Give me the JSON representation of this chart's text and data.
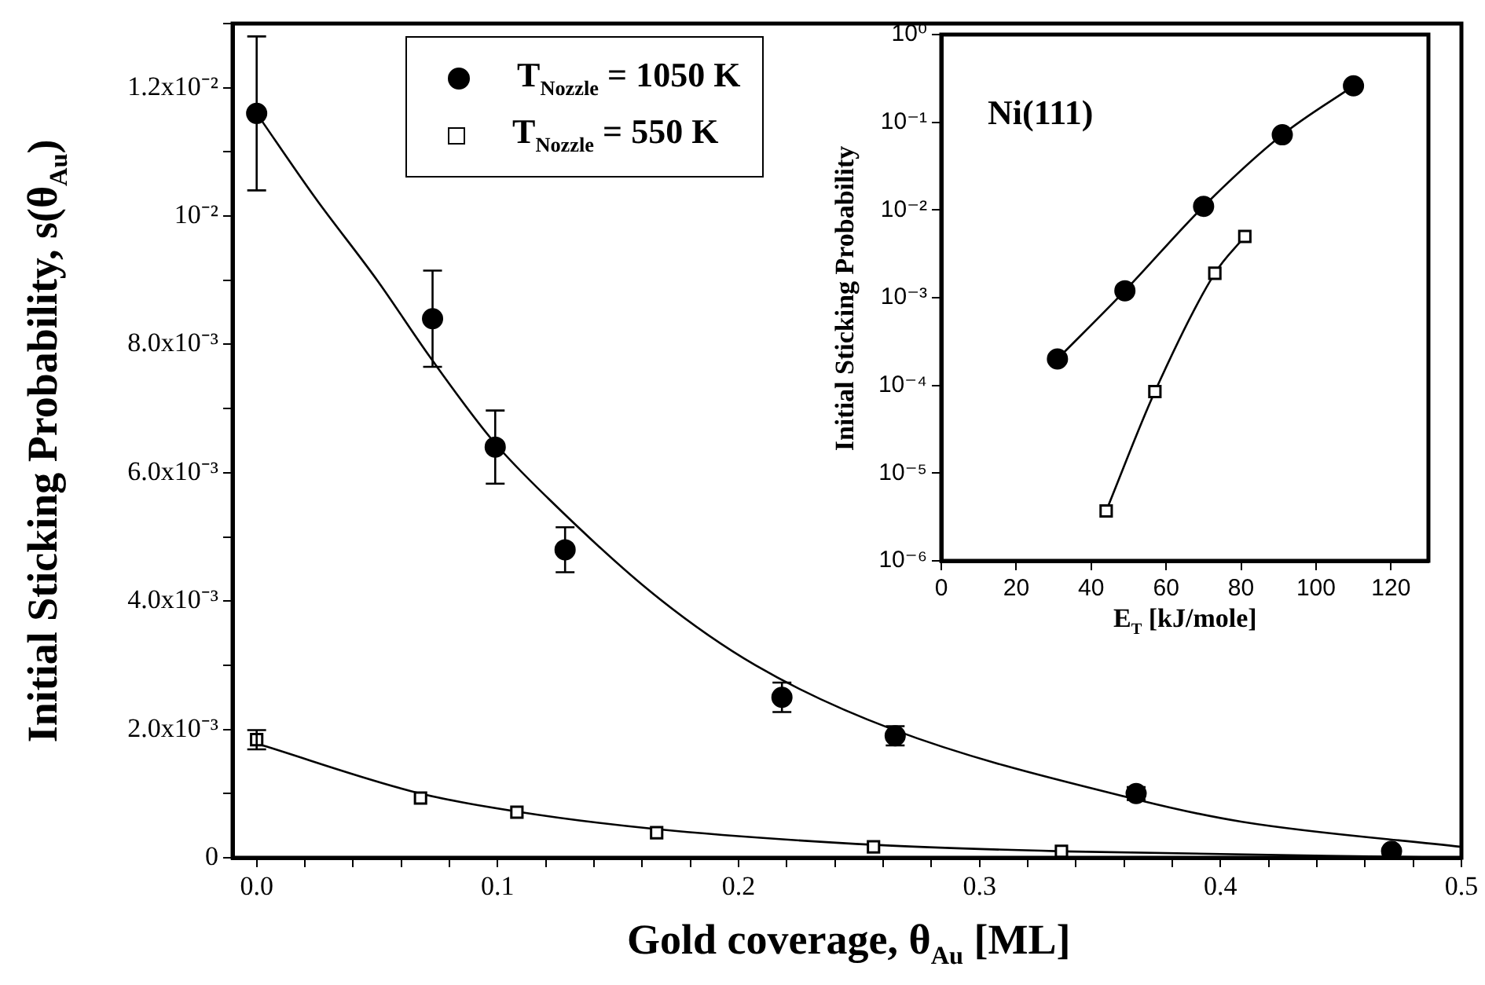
{
  "chart_data": [
    {
      "type": "scatter",
      "xlabel": "Gold coverage, θ$_{Au}$ [ML]",
      "ylabel": "Initial Sticking Probability, s(θ$_{Au}$)",
      "xlim": [
        -0.01,
        0.5
      ],
      "xticks": [
        {
          "value": 0,
          "label": "0.0"
        },
        {
          "value": 0.02,
          "label": null
        },
        {
          "value": 0.04,
          "label": null
        },
        {
          "value": 0.06,
          "label": null
        },
        {
          "value": 0.08,
          "label": null
        },
        0.1,
        {
          "value": 0.12,
          "label": null
        },
        {
          "value": 0.14,
          "label": null
        },
        {
          "value": 0.16,
          "label": null
        },
        {
          "value": 0.18,
          "label": null
        },
        0.2,
        {
          "value": 0.22,
          "label": null
        },
        {
          "value": 0.24,
          "label": null
        },
        {
          "value": 0.26,
          "label": null
        },
        {
          "value": 0.28,
          "label": null
        },
        0.3,
        {
          "value": 0.32,
          "label": null
        },
        {
          "value": 0.34,
          "label": null
        },
        {
          "value": 0.36,
          "label": null
        },
        {
          "value": 0.38,
          "label": null
        },
        0.4,
        {
          "value": 0.42,
          "label": null
        },
        {
          "value": 0.44,
          "label": null
        },
        {
          "value": 0.46,
          "label": null
        },
        {
          "value": 0.48,
          "label": null
        },
        0.5
      ],
      "ylim": [
        0,
        0.013
      ],
      "yticks": [
        0,
        {
          "value": 0.001,
          "label": null
        },
        {
          "value": 0.002,
          "label": "2.0x10⁻³"
        },
        {
          "value": 0.003,
          "label": null
        },
        {
          "value": 0.004,
          "label": "4.0x10⁻³"
        },
        {
          "value": 0.005,
          "label": null
        },
        {
          "value": 0.006,
          "label": "6.0x10⁻³"
        },
        {
          "value": 0.007,
          "label": null
        },
        {
          "value": 0.008,
          "label": "8.0x10⁻³"
        },
        {
          "value": 0.009,
          "label": null
        },
        {
          "value": 0.01,
          "label": "10⁻²"
        },
        {
          "value": 0.011,
          "label": null
        },
        {
          "value": 0.012,
          "label": "1.2x10⁻²"
        },
        {
          "value": 0.013,
          "label": null
        }
      ],
      "grid": false,
      "legend": "top",
      "series": [
        {
          "name": "T$_{Nozzle}$ = 1050 K",
          "marker": "circle",
          "color": "#000000",
          "x": [
            0,
            0.073,
            0.099,
            0.128,
            0.218,
            0.265,
            0.365,
            0.471
          ],
          "values": [
            0.0116,
            0.0084,
            0.0064,
            0.0048,
            0.0025,
            0.0019,
            0.001,
            0.0001
          ],
          "errors": [
            0.0012,
            0.00075,
            0.00057,
            0.00035,
            0.00023,
            0.00015,
            0.0001,
            null
          ]
        },
        {
          "name": "T$_{Nozzle}$ = 550 K",
          "marker": "square",
          "color": "#000000",
          "x": [
            0,
            0.068,
            0.108,
            0.166,
            0.256,
            0.334
          ],
          "values": [
            0.00184,
            0.00093,
            0.00071,
            0.00039,
            0.00017,
            0.0001
          ],
          "errors": [
            0.00015,
            null,
            null,
            null,
            null,
            null
          ]
        },
        {
          "type": "line",
          "marker": "none",
          "color": "#000000",
          "x": [
            0,
            0.024,
            0.05,
            0.072,
            0.098,
            0.121,
            0.165,
            0.207,
            0.264,
            0.366,
            0.409,
            0.5
          ],
          "values": [
            0.0116,
            0.0103,
            0.009,
            0.0078,
            0.0065,
            0.0056,
            0.0041,
            0.003,
            0.002,
            0.0009,
            0.00056,
            0.00017
          ]
        },
        {
          "type": "line",
          "marker": "none",
          "color": "#000000",
          "x": [
            0,
            0.068,
            0.108,
            0.165,
            0.257,
            0.335,
            0.5
          ],
          "values": [
            0.00178,
            0.001,
            0.00072,
            0.00045,
            0.0002,
            0.0001,
            0
          ]
        }
      ]
    },
    {
      "type": "line",
      "xlabel": "E$_{T}$ [kJ/mole]",
      "ylabel": "Initial Sticking Probability",
      "annotations": [
        "Ni(111)"
      ],
      "log": "y",
      "grid": false,
      "xlim": [
        0,
        130
      ],
      "xticks": [
        0,
        20,
        40,
        60,
        80,
        100,
        120
      ],
      "ylim": [
        1e-06,
        1
      ],
      "yticks": [
        {
          "value": 1e-06,
          "label": "10⁻⁶"
        },
        {
          "value": 1e-05,
          "label": "10⁻⁵"
        },
        {
          "value": 0.0001,
          "label": "10⁻⁴"
        },
        {
          "value": 0.001,
          "label": "10⁻³"
        },
        {
          "value": 0.01,
          "label": "10⁻²"
        },
        {
          "value": 0.1,
          "label": "10⁻¹"
        },
        {
          "value": 1,
          "label": "10⁰"
        }
      ],
      "series": [
        {
          "marker": "circle",
          "color": "#000000",
          "x": [
            31,
            49,
            70,
            91,
            110
          ],
          "values": [
            0.0002,
            0.0012,
            0.011,
            0.072,
            0.26
          ]
        },
        {
          "marker": "square",
          "color": "#000000",
          "x": [
            44,
            57,
            73,
            81
          ],
          "values": [
            3.7e-06,
            8.5e-05,
            0.0019,
            0.005
          ]
        }
      ]
    }
  ]
}
